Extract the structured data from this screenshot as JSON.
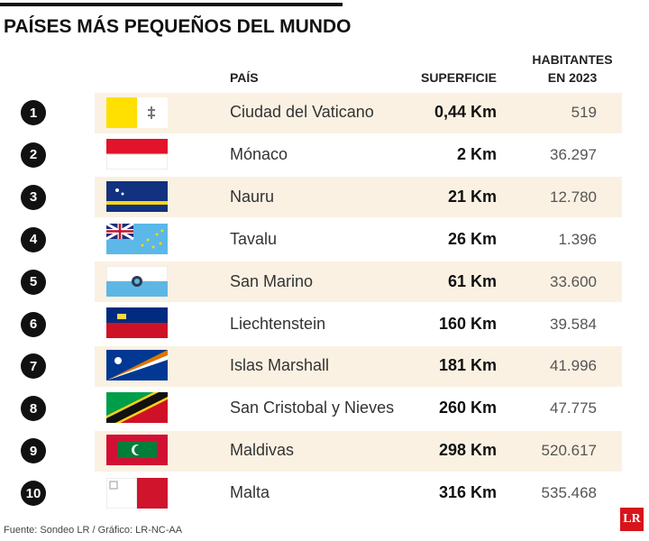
{
  "header": {
    "title": "PAÍSES MÁS PEQUEÑOS DEL MUNDO"
  },
  "table": {
    "columns": [
      "PAÍS",
      "SUPERFICIE",
      "HABITANTES EN 2023"
    ],
    "rows": [
      [
        1,
        "Ciudad del Vaticano",
        "0,44 Km",
        "519"
      ],
      [
        2,
        "Mónaco",
        "2 Km",
        "36.297"
      ],
      [
        3,
        "Nauru",
        "21 Km",
        "12.780"
      ],
      [
        4,
        "Tavalu",
        "26 Km",
        "1.396"
      ],
      [
        5,
        "San Marino",
        "61 Km",
        "33.600"
      ],
      [
        6,
        "Liechtenstein",
        "160 Km",
        "39.584"
      ],
      [
        7,
        "Islas Marshall",
        "181 Km",
        "41.996"
      ],
      [
        8,
        "San Cristobal y Nieves",
        "260 Km",
        "47.775"
      ],
      [
        9,
        "Maldivas",
        "298 Km",
        "520.617"
      ],
      [
        10,
        "Malta",
        "316 Km",
        "535.468"
      ]
    ]
  },
  "footer": {
    "source": "Fuente: Sondeo LR / Gráfico: LR-NC-AA",
    "logo": "LR"
  }
}
